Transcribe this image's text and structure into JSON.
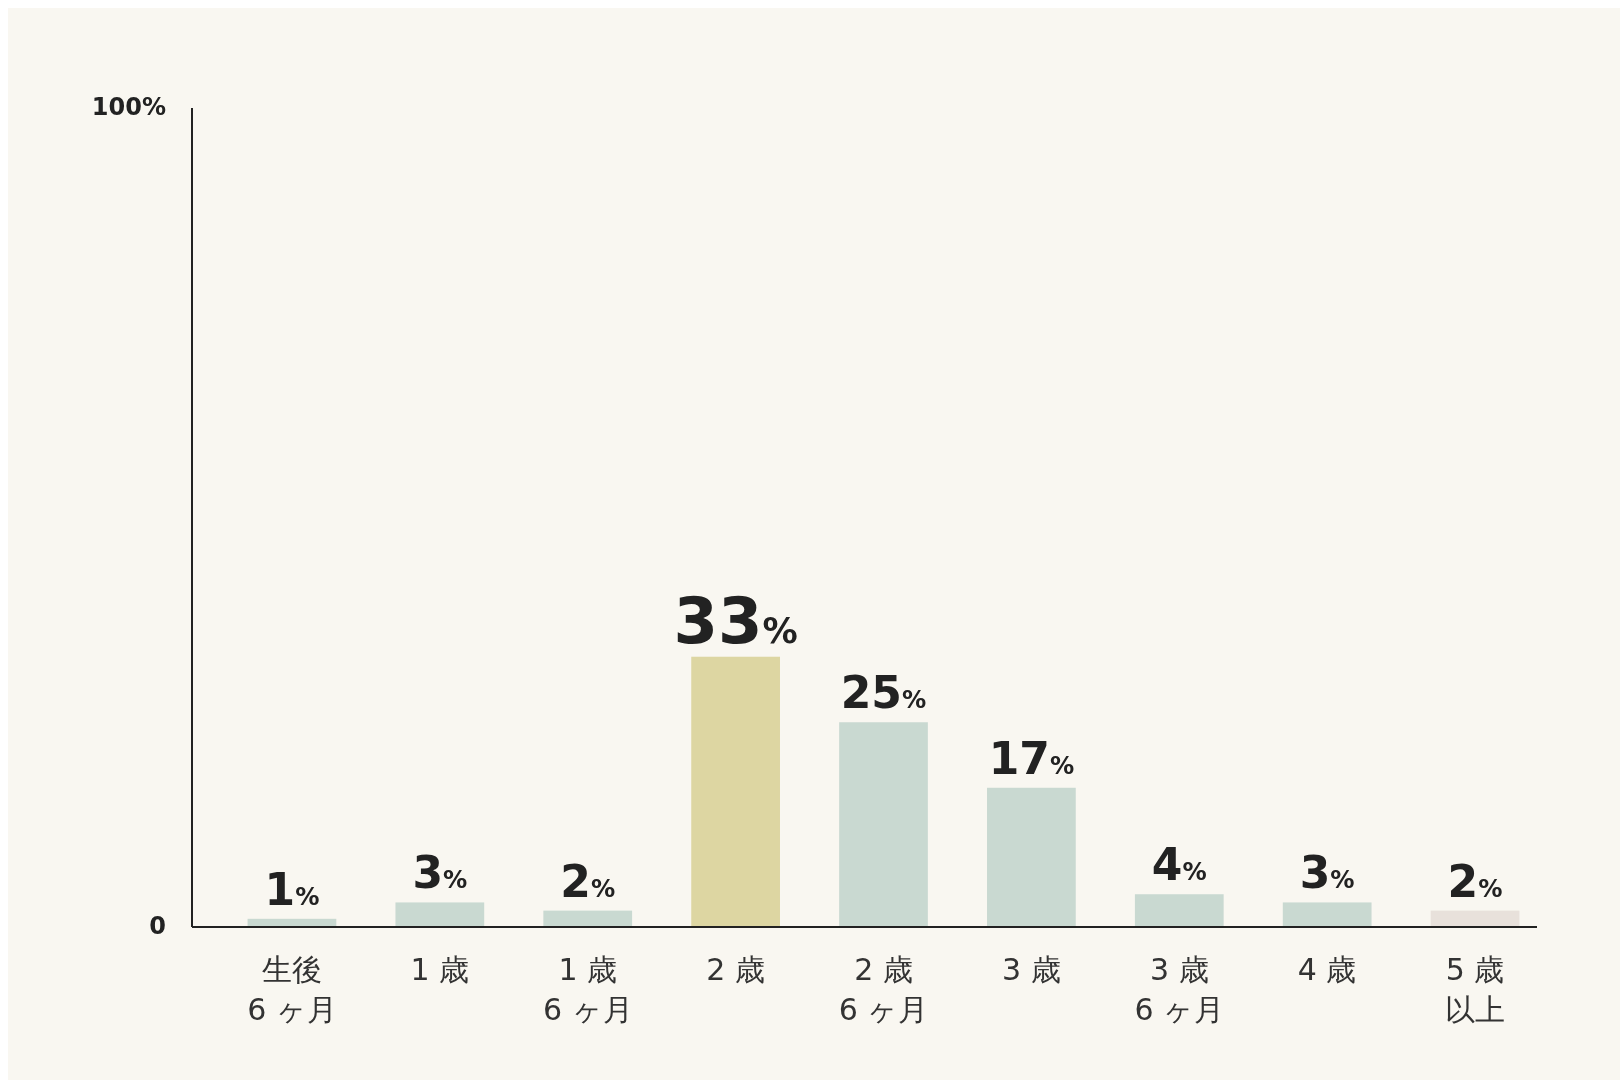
{
  "chart_data": {
    "type": "bar",
    "categories": [
      "生後6 ヶ月",
      "1 歳",
      "1 歳6 ヶ月",
      "2 歳",
      "2 歳6 ヶ月",
      "3 歳",
      "3 歳6 ヶ月",
      "4 歳",
      "5 歳以上"
    ],
    "values": [
      1,
      3,
      2,
      33,
      25,
      17,
      4,
      3,
      2
    ],
    "colors": [
      "#c9d9d1",
      "#c9d9d1",
      "#c9d9d1",
      "#ddd6a2",
      "#c9d9d1",
      "#c9d9d1",
      "#c9d9d1",
      "#c9d9d1",
      "#e8e1db"
    ],
    "value_labels": [
      "1%",
      "3%",
      "2%",
      "33%",
      "25%",
      "17%",
      "4%",
      "3%",
      "2%"
    ],
    "ylim": [
      0,
      100
    ],
    "yticks": [
      0,
      {
        "value": 100,
        "label": "100%"
      }
    ],
    "grid": false
  }
}
